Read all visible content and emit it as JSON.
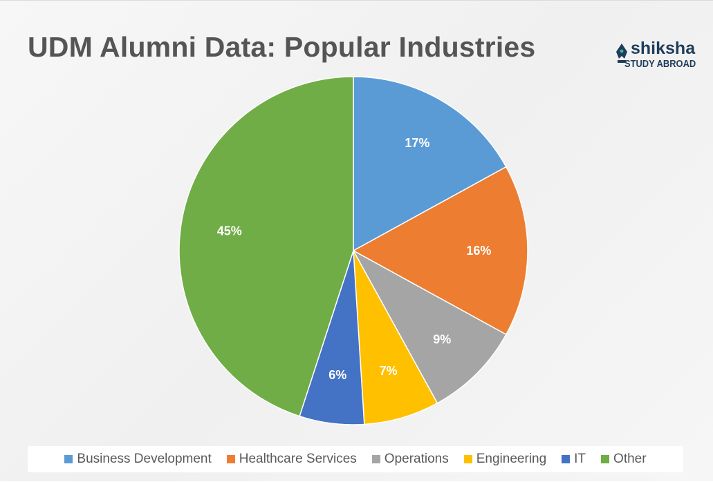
{
  "chart_data": {
    "type": "pie",
    "title": "UDM Alumni Data: Popular Industries",
    "legend_position": "bottom",
    "slices": [
      {
        "label": "Business Development",
        "value": 17,
        "display": "17%",
        "color": "#5b9bd5"
      },
      {
        "label": "Healthcare Services",
        "value": 16,
        "display": "16%",
        "color": "#ed7d31"
      },
      {
        "label": "Operations",
        "value": 9,
        "display": "9%",
        "color": "#a5a5a5"
      },
      {
        "label": "Engineering",
        "value": 7,
        "display": "7%",
        "color": "#ffc000"
      },
      {
        "label": "IT",
        "value": 6,
        "display": "6%",
        "color": "#4472c4"
      },
      {
        "label": "Other",
        "value": 45,
        "display": "45%",
        "color": "#70ad47"
      }
    ]
  },
  "logo": {
    "word": "shiksha",
    "sub": "STUDY ABROAD",
    "icon": "pen-nib-icon",
    "color": "#1f3d5a",
    "accent": "#3fb6a8"
  }
}
